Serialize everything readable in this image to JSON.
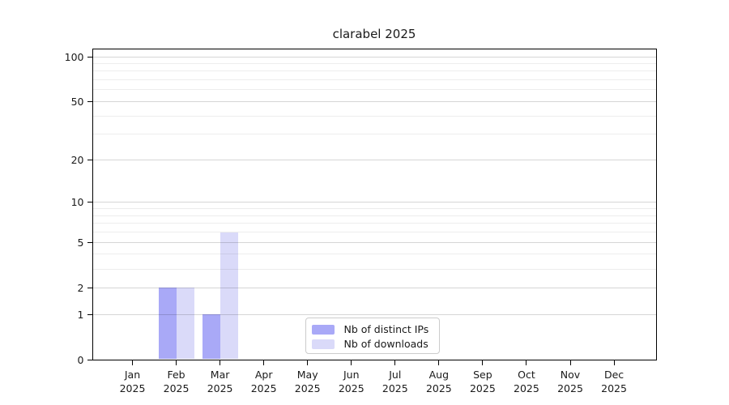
{
  "colors": {
    "background": "#ffffff",
    "spine": "#000000",
    "text": "#1a1a1a",
    "grid_major": "#d9d9d9",
    "grid_minor": "#ededed",
    "legend_border": "#cccccc"
  },
  "chart_data": {
    "type": "bar",
    "title": "clarabel 2025",
    "categories": [
      "Jan 2025",
      "Feb 2025",
      "Mar 2025",
      "Apr 2025",
      "May 2025",
      "Jun 2025",
      "Jul 2025",
      "Aug 2025",
      "Sep 2025",
      "Oct 2025",
      "Nov 2025",
      "Dec 2025"
    ],
    "series": [
      {
        "name": "Nb of distinct IPs",
        "color": "#a9a9f7",
        "values": [
          0,
          2,
          1,
          0,
          0,
          0,
          0,
          0,
          0,
          0,
          0,
          0
        ]
      },
      {
        "name": "Nb of downloads",
        "color": "#dadaf9",
        "values": [
          0,
          2,
          6,
          0,
          0,
          0,
          0,
          0,
          0,
          0,
          0,
          0
        ]
      }
    ],
    "xlabel": "",
    "ylabel": "",
    "scale": "log1p",
    "ylim": [
      0,
      114
    ],
    "yticks": [
      0,
      1,
      2,
      5,
      10,
      20,
      50,
      100
    ],
    "yticks_minor": [
      3,
      4,
      6,
      7,
      8,
      9,
      30,
      40,
      60,
      70,
      80,
      90
    ],
    "grid": true,
    "legend_position": "lower center"
  }
}
